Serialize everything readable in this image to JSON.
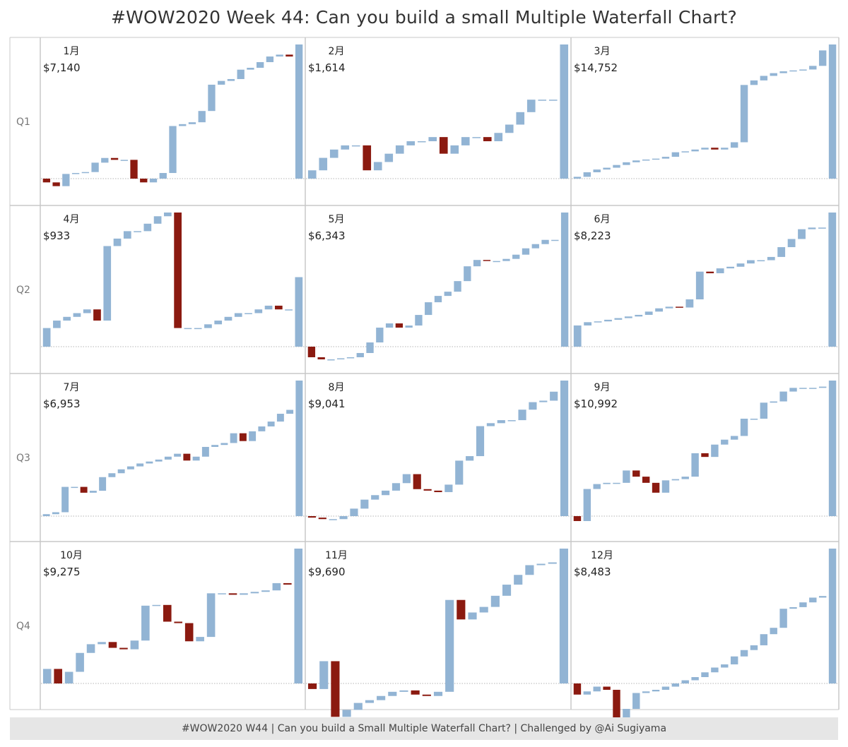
{
  "title": "#WOW2020 Week 44: Can you build a small Multiple Waterfall  Chart?",
  "footer": "#WOW2020 W44 | Can you build a Small Multiple Waterfall Chart? | Challenged by @Ai Sugiyama",
  "colors": {
    "increase": "#92b4d4",
    "decrease": "#8b1a10",
    "grid": "#c8c8c8",
    "zero_line": "#b4b4b4"
  },
  "chart_data": {
    "type": "bar",
    "subtype": "waterfall-small-multiples",
    "title": "#WOW2020 Week 44: Can you build a small Multiple Waterfall  Chart?",
    "rows": [
      "Q1",
      "Q2",
      "Q3",
      "Q4"
    ],
    "grid": true,
    "panels": [
      {
        "month": "1月",
        "quarter": "Q1",
        "total_label": "$7,140",
        "total": 7140,
        "deltas": [
          -200,
          -200,
          650,
          50,
          50,
          500,
          250,
          -100,
          0,
          -1000,
          -200,
          200,
          300,
          2500,
          100,
          100,
          600,
          1400,
          200,
          100,
          500,
          100,
          300,
          300,
          100,
          -100
        ]
      },
      {
        "month": "2月",
        "quarter": "Q1",
        "total_label": "$1,614",
        "total": 1614,
        "deltas": [
          100,
          150,
          100,
          50,
          0,
          -300,
          100,
          100,
          100,
          50,
          0,
          50,
          -200,
          100,
          100,
          0,
          -50,
          100,
          100,
          150,
          150,
          0,
          0
        ]
      },
      {
        "month": "3月",
        "quarter": "Q1",
        "total_label": "$14,752",
        "total": 14752,
        "deltas": [
          200,
          500,
          300,
          200,
          300,
          300,
          200,
          100,
          100,
          200,
          500,
          100,
          200,
          200,
          -200,
          200,
          600,
          6300,
          500,
          500,
          300,
          200,
          100,
          100,
          400,
          1700
        ]
      },
      {
        "month": "4月",
        "quarter": "Q2",
        "total_label": "$933",
        "total": 933,
        "deltas": [
          250,
          100,
          50,
          50,
          50,
          -150,
          1000,
          100,
          100,
          0,
          100,
          100,
          50,
          -1550,
          0,
          0,
          50,
          50,
          50,
          50,
          0,
          50,
          50,
          -50,
          0
        ]
      },
      {
        "month": "5月",
        "quarter": "Q2",
        "total_label": "$6,343",
        "total": 6343,
        "deltas": [
          -500,
          -100,
          0,
          50,
          50,
          200,
          500,
          700,
          200,
          -200,
          100,
          500,
          600,
          300,
          200,
          500,
          700,
          300,
          -50,
          0,
          100,
          200,
          300,
          200,
          200,
          0
        ]
      },
      {
        "month": "6月",
        "quarter": "Q2",
        "total_label": "$8,223",
        "total": 8223,
        "deltas": [
          1300,
          200,
          50,
          100,
          100,
          100,
          100,
          200,
          200,
          100,
          -50,
          500,
          1700,
          -100,
          300,
          100,
          200,
          200,
          0,
          200,
          600,
          500,
          600,
          100,
          0
        ]
      },
      {
        "month": "7月",
        "quarter": "Q3",
        "total_label": "$6,953",
        "total": 6953,
        "deltas": [
          100,
          100,
          1300,
          0,
          -300,
          100,
          700,
          200,
          200,
          150,
          150,
          100,
          100,
          150,
          150,
          -350,
          200,
          500,
          100,
          100,
          500,
          -400,
          500,
          250,
          250,
          400,
          200
        ]
      },
      {
        "month": "8月",
        "quarter": "Q3",
        "total_label": "$9,041",
        "total": 9041,
        "deltas": [
          -100,
          -100,
          0,
          200,
          500,
          600,
          300,
          300,
          500,
          600,
          -1000,
          -100,
          -100,
          500,
          1600,
          300,
          2000,
          200,
          200,
          0,
          700,
          500,
          100,
          600
        ]
      },
      {
        "month": "9月",
        "quarter": "Q3",
        "total_label": "$10,992",
        "total": 10992,
        "deltas": [
          -400,
          2600,
          400,
          100,
          0,
          1000,
          -500,
          -500,
          -800,
          1000,
          100,
          200,
          1900,
          -300,
          1000,
          400,
          300,
          1400,
          0,
          1300,
          100,
          800,
          300,
          0,
          0,
          100
        ]
      },
      {
        "month": "10月",
        "quarter": "Q4",
        "total_label": "$9,275",
        "total": 9275,
        "deltas": [
          1000,
          -1000,
          800,
          1300,
          600,
          150,
          -400,
          -100,
          600,
          2400,
          50,
          -1150,
          -100,
          -1250,
          300,
          3000,
          0,
          -100,
          100,
          100,
          100,
          500,
          -100
        ]
      },
      {
        "month": "11月",
        "quarter": "Q4",
        "total_label": "$9,690",
        "total": 9690,
        "deltas": [
          -400,
          2000,
          -4000,
          500,
          500,
          200,
          300,
          300,
          100,
          -300,
          -100,
          300,
          6600,
          -1400,
          500,
          400,
          800,
          800,
          700,
          700,
          100,
          100
        ]
      },
      {
        "month": "12月",
        "quarter": "Q4",
        "total_label": "$8,483",
        "total": 8483,
        "deltas": [
          -700,
          200,
          300,
          -200,
          -2600,
          1400,
          1000,
          100,
          100,
          200,
          200,
          200,
          200,
          300,
          300,
          200,
          500,
          400,
          300,
          700,
          400,
          1200,
          100,
          300,
          300,
          100
        ]
      }
    ]
  }
}
